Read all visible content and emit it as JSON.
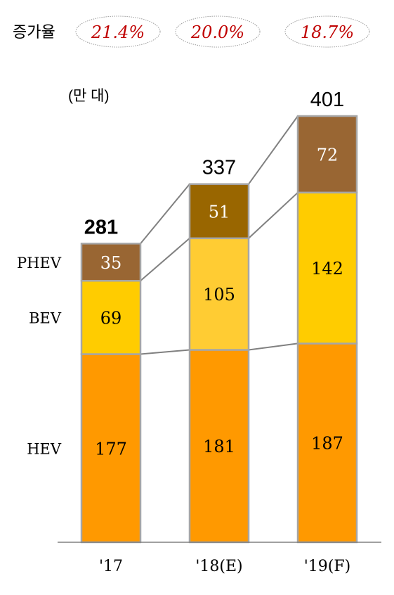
{
  "chart_data": {
    "type": "bar",
    "stacked": true,
    "unit_label": "(만 대)",
    "growth_label": "증가율",
    "growth_rates": [
      "21.4%",
      "20.0%",
      "18.7%"
    ],
    "categories": [
      "'17",
      "'18(E)",
      "'19(F)"
    ],
    "totals": [
      281,
      337,
      401
    ],
    "series": [
      {
        "name": "HEV",
        "values": [
          177,
          181,
          187
        ]
      },
      {
        "name": "BEV",
        "values": [
          69,
          105,
          142
        ]
      },
      {
        "name": "PHEV",
        "values": [
          35,
          51,
          72
        ]
      }
    ],
    "ylim": [
      0,
      401
    ],
    "colors": {
      "HEV": [
        "#FF9900",
        "#FF9900",
        "#FF9900"
      ],
      "BEV": [
        "#FFCC00",
        "#FFCC33",
        "#FFCC00"
      ],
      "PHEV": [
        "#996633",
        "#996600",
        "#996633"
      ],
      "growth_text": "#C00000",
      "connector": "#808080",
      "bar_border": "#A6A6A6"
    }
  }
}
